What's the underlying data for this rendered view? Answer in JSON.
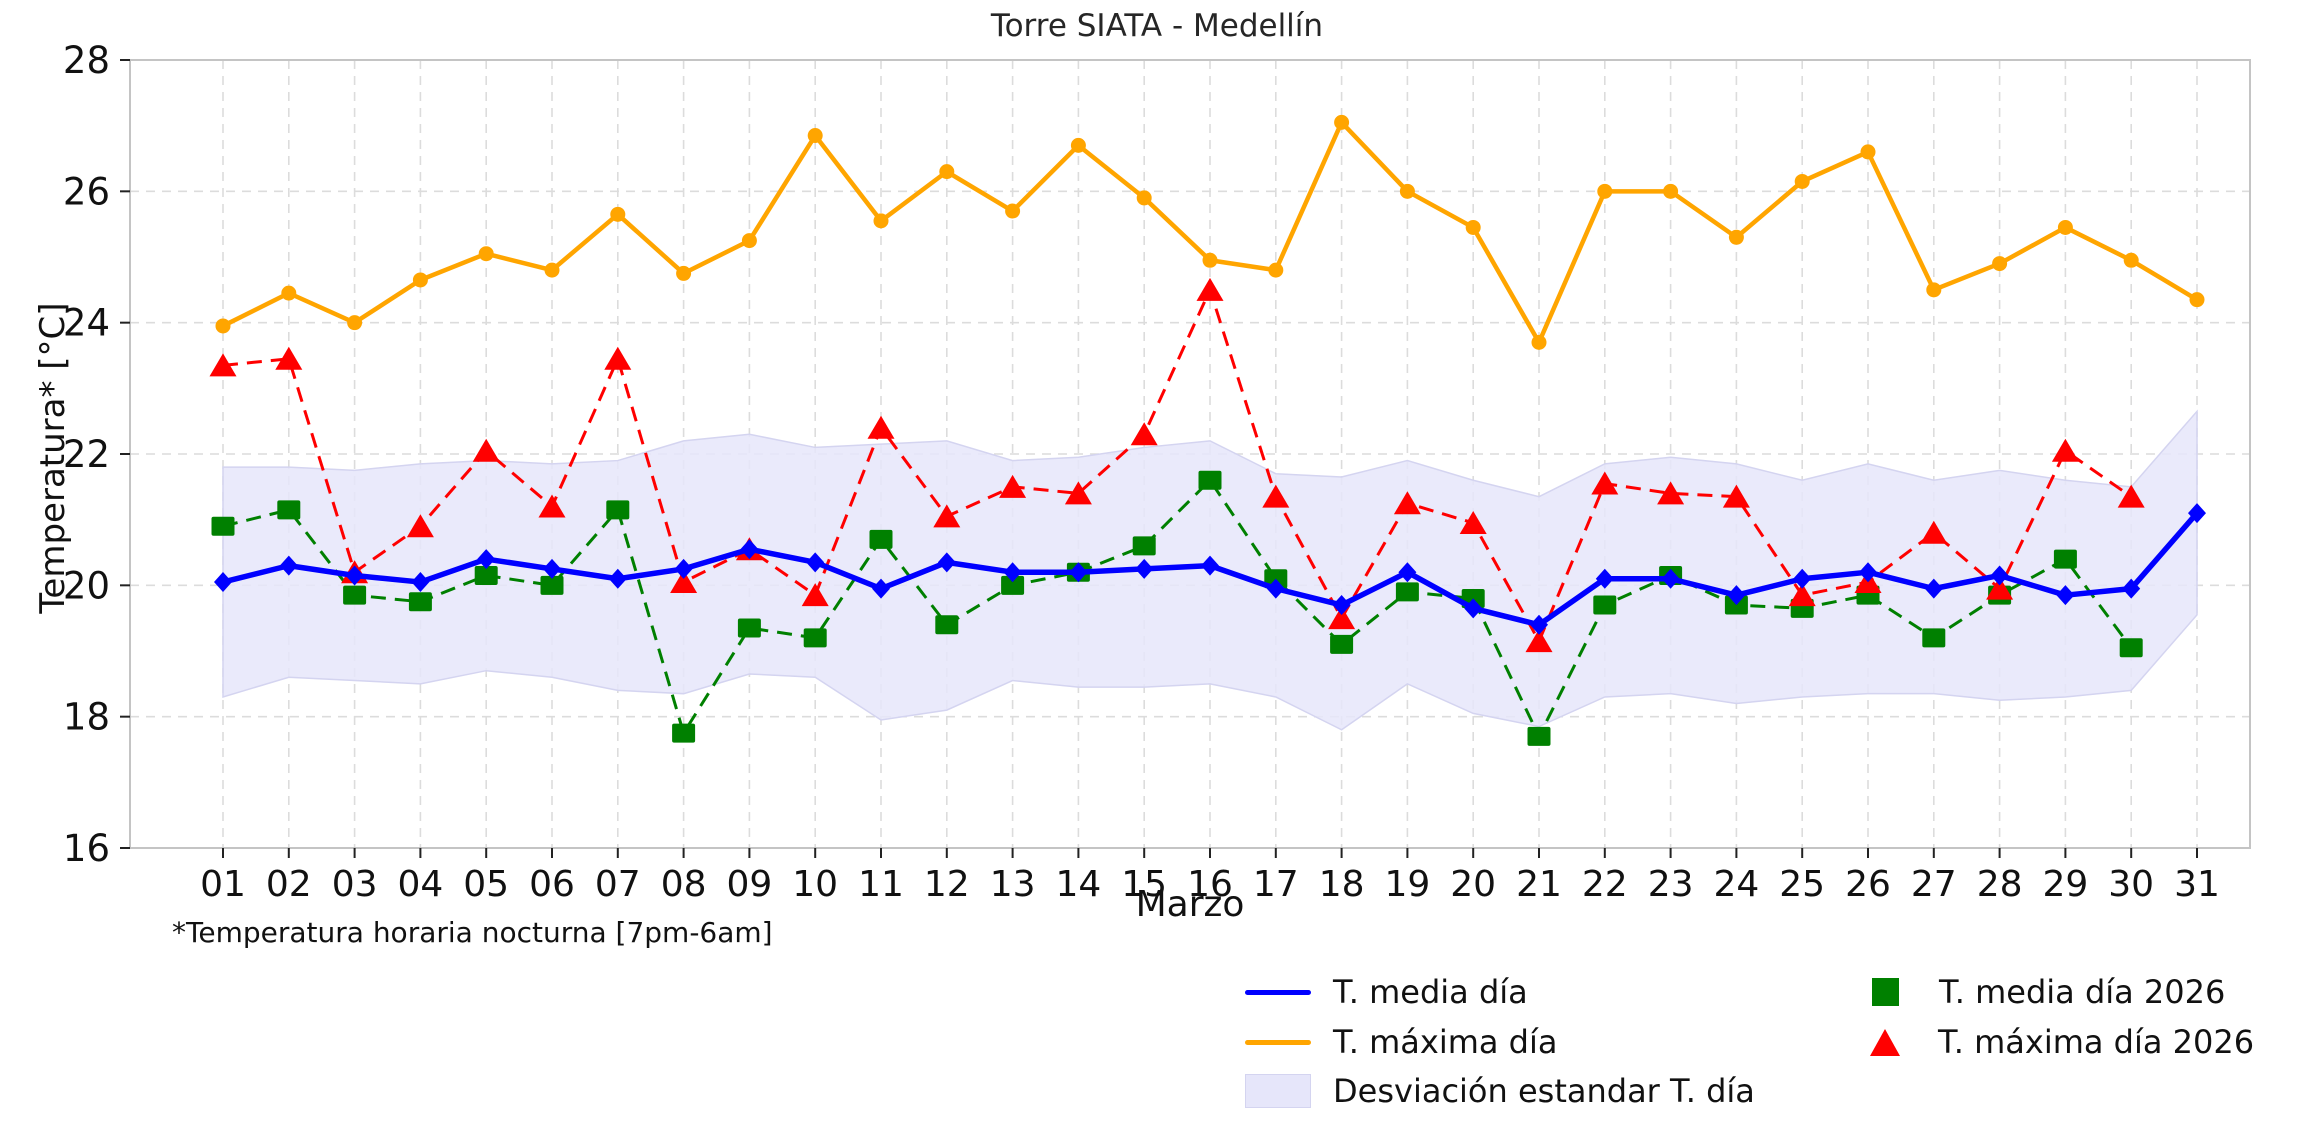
{
  "chart_data": {
    "type": "line",
    "title": "Torre SIATA - Medellín",
    "xlabel": "Marzo",
    "ylabel": "Temperatura* [°C]",
    "footnote": "*Temperatura horaria nocturna [7pm-6am]",
    "ylim": [
      16,
      28
    ],
    "yticks": [
      16,
      18,
      20,
      22,
      24,
      26,
      28
    ],
    "x": [
      "01",
      "02",
      "03",
      "04",
      "05",
      "06",
      "07",
      "08",
      "09",
      "10",
      "11",
      "12",
      "13",
      "14",
      "15",
      "16",
      "17",
      "18",
      "19",
      "20",
      "21",
      "22",
      "23",
      "24",
      "25",
      "26",
      "27",
      "28",
      "29",
      "30",
      "31"
    ],
    "grid": "both-dashed",
    "legend_position": "below-right, two columns",
    "series": [
      {
        "name": "T. media día",
        "type": "line",
        "color": "#0000ff",
        "marker": "diamond",
        "values": [
          20.05,
          20.3,
          20.15,
          20.05,
          20.4,
          20.25,
          20.1,
          20.25,
          20.55,
          20.35,
          19.95,
          20.35,
          20.2,
          20.2,
          20.25,
          20.3,
          19.95,
          19.7,
          20.2,
          19.65,
          19.4,
          20.1,
          20.1,
          19.85,
          20.1,
          20.2,
          19.95,
          20.15,
          19.85,
          19.95,
          21.1
        ]
      },
      {
        "name": "T. máxima día",
        "type": "line",
        "color": "#ffa500",
        "marker": "circle",
        "values": [
          23.95,
          24.45,
          24.0,
          24.65,
          25.05,
          24.8,
          25.65,
          24.75,
          25.25,
          26.85,
          25.55,
          26.3,
          25.7,
          26.7,
          25.9,
          24.95,
          24.8,
          27.05,
          26.0,
          25.45,
          23.7,
          26.0,
          26.0,
          25.3,
          26.15,
          26.6,
          24.5,
          24.9,
          25.45,
          24.95,
          24.35
        ]
      },
      {
        "name": "Desviación estandar T. día",
        "type": "band",
        "color": "#e6e6fa",
        "upper": [
          21.8,
          21.8,
          21.75,
          21.85,
          21.9,
          21.85,
          21.9,
          22.2,
          22.3,
          22.1,
          22.15,
          22.2,
          21.9,
          21.95,
          22.1,
          22.2,
          21.7,
          21.65,
          21.9,
          21.6,
          21.35,
          21.85,
          21.95,
          21.85,
          21.6,
          21.85,
          21.6,
          21.75,
          21.6,
          21.5,
          22.65
        ],
        "lower": [
          18.3,
          18.6,
          18.55,
          18.5,
          18.7,
          18.6,
          18.4,
          18.35,
          18.65,
          18.6,
          17.95,
          18.1,
          18.55,
          18.45,
          18.45,
          18.5,
          18.3,
          17.8,
          18.5,
          18.05,
          17.85,
          18.3,
          18.35,
          18.2,
          18.3,
          18.35,
          18.35,
          18.25,
          18.3,
          18.4,
          19.55
        ]
      },
      {
        "name": "T. media día 2026",
        "type": "dashed-line",
        "color": "#008000",
        "marker": "square",
        "values": [
          20.9,
          21.15,
          19.85,
          19.75,
          20.15,
          20.0,
          21.15,
          17.75,
          19.35,
          19.2,
          20.7,
          19.4,
          20.0,
          20.2,
          20.6,
          21.6,
          20.1,
          19.1,
          19.9,
          19.8,
          17.7,
          19.7,
          20.15,
          19.7,
          19.65,
          19.85,
          19.2,
          19.85,
          20.4,
          19.05,
          null
        ]
      },
      {
        "name": "T. máxima día 2026",
        "type": "dashed-line",
        "color": "#ff0000",
        "marker": "triangle",
        "values": [
          23.35,
          23.45,
          20.2,
          20.9,
          22.05,
          21.2,
          23.45,
          20.05,
          20.55,
          19.85,
          22.4,
          21.05,
          21.5,
          21.4,
          22.3,
          24.5,
          21.35,
          19.5,
          21.25,
          20.95,
          19.15,
          21.55,
          21.4,
          21.35,
          19.85,
          20.05,
          20.8,
          19.95,
          22.05,
          21.35,
          null
        ]
      }
    ]
  },
  "colors": {
    "grid": "#dcdcdc",
    "spine": "#c4c4c4",
    "tick": "#222222",
    "band_fill": "#e6e6fa",
    "band_edge": "#d4d4f0"
  }
}
